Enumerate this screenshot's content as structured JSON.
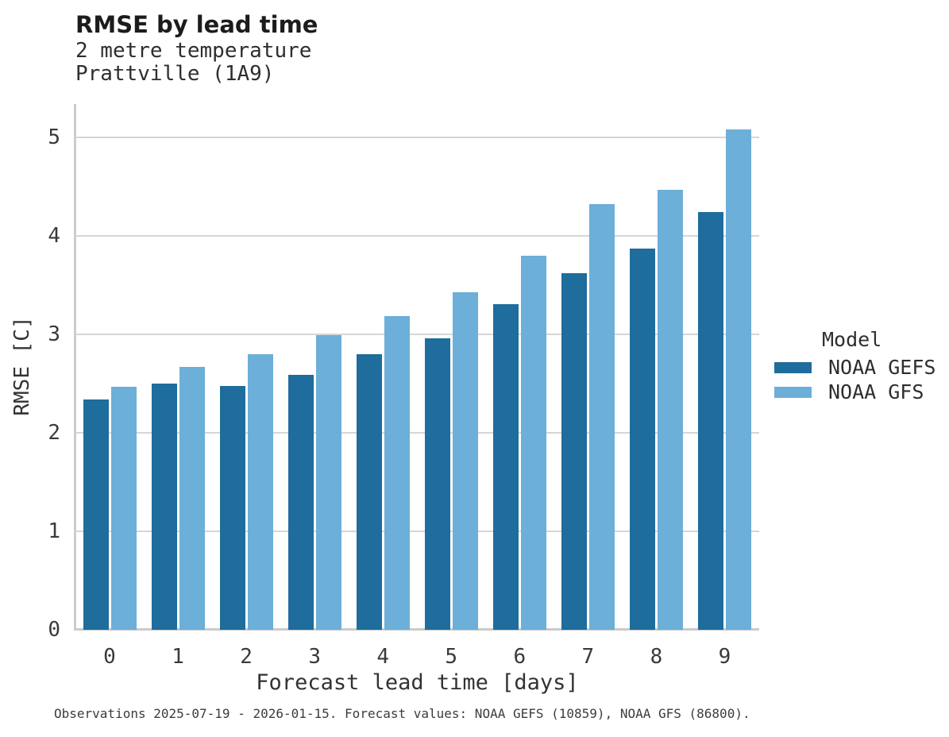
{
  "header": {
    "title": "RMSE by lead time",
    "subtitle_lines": [
      "2 metre temperature",
      "Prattville (1A9)"
    ]
  },
  "legend": {
    "title": "Model",
    "entries": [
      {
        "label": "NOAA GEFS",
        "color": "#1e6d9c"
      },
      {
        "label": "NOAA GFS",
        "color": "#6cafd8"
      }
    ]
  },
  "footer": {
    "caption": "Observations 2025-07-19 - 2026-01-15. Forecast values: NOAA GEFS (10859), NOAA GFS (86800)."
  },
  "chart_data": {
    "type": "bar",
    "title": "RMSE by lead time",
    "subtitle": "2 metre temperature, Prattville (1A9)",
    "categories": [
      "0",
      "1",
      "2",
      "3",
      "4",
      "5",
      "6",
      "7",
      "8",
      "9"
    ],
    "series": [
      {
        "name": "NOAA GEFS",
        "color": "#1e6d9c",
        "values": [
          2.34,
          2.5,
          2.48,
          2.59,
          2.8,
          2.96,
          3.31,
          3.62,
          3.87,
          4.24
        ]
      },
      {
        "name": "NOAA GFS",
        "color": "#6cafd8",
        "values": [
          2.47,
          2.67,
          2.8,
          2.99,
          3.19,
          3.43,
          3.8,
          4.32,
          4.47,
          5.08
        ]
      }
    ],
    "xlabel": "Forecast lead time [days]",
    "ylabel": "RMSE [C]",
    "ylim": [
      0,
      5.34
    ],
    "yticks": [
      0,
      1,
      2,
      3,
      4,
      5
    ],
    "grid": true,
    "legend_position": "right",
    "legend_title": "Model"
  },
  "colors": {
    "axis_line": "#cbcbcb",
    "gridline": "#d6d6d6",
    "background": "#ffffff"
  }
}
